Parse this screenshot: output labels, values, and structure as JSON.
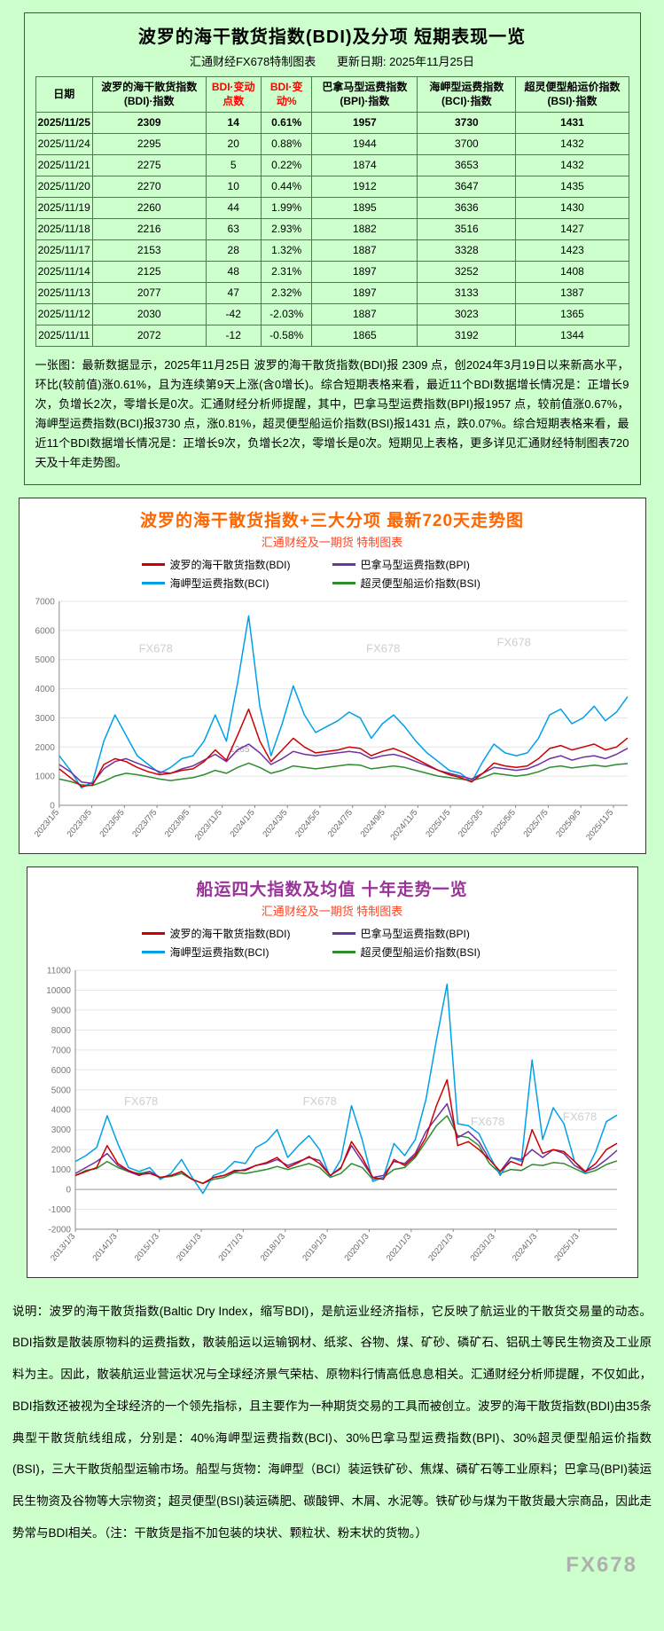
{
  "page": {
    "watermark": "FX678",
    "bg": "#ccffcc"
  },
  "table_panel": {
    "title": "波罗的海干散货指数(BDI)及分项 短期表现一览",
    "source_label": "汇通财经FX678特制图表",
    "update_label": "更新日期: 2025年11月25日",
    "columns": [
      {
        "label": "日期",
        "color": "#000000"
      },
      {
        "label": "波罗的海干散货指数(BDI)·指数",
        "color": "#000000"
      },
      {
        "label": "BDI·变动点数",
        "color": "#ff0000"
      },
      {
        "label": "BDI·变动%",
        "color": "#ff0000"
      },
      {
        "label": "巴拿马型运费指数(BPI)·指数",
        "color": "#000000"
      },
      {
        "label": "海岬型运费指数(BCI)·指数",
        "color": "#000000"
      },
      {
        "label": "超灵便型船运价指数(BSI)·指数",
        "color": "#000000"
      }
    ],
    "rows": [
      [
        "2025/11/25",
        "2309",
        "14",
        "0.61%",
        "1957",
        "3730",
        "1431"
      ],
      [
        "2025/11/24",
        "2295",
        "20",
        "0.88%",
        "1944",
        "3700",
        "1432"
      ],
      [
        "2025/11/21",
        "2275",
        "5",
        "0.22%",
        "1874",
        "3653",
        "1432"
      ],
      [
        "2025/11/20",
        "2270",
        "10",
        "0.44%",
        "1912",
        "3647",
        "1435"
      ],
      [
        "2025/11/19",
        "2260",
        "44",
        "1.99%",
        "1895",
        "3636",
        "1430"
      ],
      [
        "2025/11/18",
        "2216",
        "63",
        "2.93%",
        "1882",
        "3516",
        "1427"
      ],
      [
        "2025/11/17",
        "2153",
        "28",
        "1.32%",
        "1887",
        "3328",
        "1423"
      ],
      [
        "2025/11/14",
        "2125",
        "48",
        "2.31%",
        "1897",
        "3252",
        "1408"
      ],
      [
        "2025/11/13",
        "2077",
        "47",
        "2.32%",
        "1897",
        "3133",
        "1387"
      ],
      [
        "2025/11/12",
        "2030",
        "-42",
        "-2.03%",
        "1887",
        "3023",
        "1365"
      ],
      [
        "2025/11/11",
        "2072",
        "-12",
        "-0.58%",
        "1865",
        "3192",
        "1344"
      ]
    ],
    "analysis": "一张图：最新数据显示，2025年11月25日 波罗的海干散货指数(BDI)报 2309 点，创2024年3月19日以来新高水平，环比(较前值)涨0.61%，且为连续第9天上涨(含0增长)。综合短期表格来看，最近11个BDI数据增长情况是：正增长9次，负增长2次，零增长是0次。汇通财经分析师提醒，其中，巴拿马型运费指数(BPI)报1957 点，较前值涨0.67%，海岬型运费指数(BCI)报3730 点，涨0.81%，超灵便型船运价指数(BSI)报1431 点，跌0.07%。综合短期表格来看，最近11个BDI数据增长情况是：正增长9次，负增长2次，零增长是0次。短期见上表格，更多详见汇通财经特制图表720天及十年走势图。"
  },
  "chart_data": [
    {
      "type": "line",
      "title": "波罗的海干散货指数+三大分项  最新720天走势图",
      "subtitle": "汇通财经及一期货 特制图表",
      "ylim": [
        0,
        7000
      ],
      "ytick_step": 1000,
      "grid": true,
      "legend_position": "top",
      "x_labels": [
        "2023/1/5",
        "2023/3/5",
        "2023/5/5",
        "2023/7/5",
        "2023/9/5",
        "2023/11/5",
        "2024/1/5",
        "2024/3/5",
        "2024/5/5",
        "2024/7/5",
        "2024/9/5",
        "2024/11/5",
        "2025/1/5",
        "2025/3/5",
        "2025/5/5",
        "2025/7/5",
        "2025/9/5",
        "2025/11/5"
      ],
      "x_label_span": 0.975,
      "series": [
        {
          "name": "波罗的海干散货指数(BDI)",
          "color": "#cc0000",
          "values": [
            1250,
            950,
            650,
            700,
            1400,
            1600,
            1500,
            1300,
            1150,
            1050,
            1100,
            1200,
            1250,
            1500,
            1900,
            1550,
            2400,
            3300,
            2200,
            1500,
            1900,
            2300,
            2000,
            1800,
            1850,
            1900,
            2000,
            1950,
            1700,
            1850,
            1950,
            1800,
            1600,
            1400,
            1200,
            1050,
            950,
            800,
            1100,
            1450,
            1350,
            1300,
            1350,
            1600,
            1950,
            2050,
            1900,
            2000,
            2100,
            1900,
            2000,
            2309
          ]
        },
        {
          "name": "巴拿马型运费指数(BPI)",
          "color": "#7030a0",
          "values": [
            1400,
            1150,
            800,
            750,
            1250,
            1500,
            1600,
            1450,
            1300,
            1150,
            1100,
            1250,
            1350,
            1550,
            1750,
            1500,
            1900,
            2100,
            1800,
            1400,
            1600,
            1850,
            1750,
            1700,
            1750,
            1800,
            1850,
            1800,
            1600,
            1700,
            1750,
            1650,
            1500,
            1350,
            1200,
            1100,
            1000,
            900,
            1100,
            1300,
            1250,
            1200,
            1250,
            1400,
            1600,
            1700,
            1550,
            1650,
            1700,
            1600,
            1750,
            1957
          ]
        },
        {
          "name": "海岬型运费指数(BCI)",
          "color": "#00a0e9",
          "values": [
            1700,
            1200,
            600,
            800,
            2200,
            3100,
            2400,
            1700,
            1400,
            1100,
            1300,
            1600,
            1700,
            2200,
            3100,
            2200,
            4200,
            6500,
            3400,
            1700,
            2800,
            4100,
            3100,
            2500,
            2700,
            2900,
            3200,
            3000,
            2300,
            2800,
            3100,
            2700,
            2200,
            1800,
            1500,
            1200,
            1100,
            800,
            1500,
            2100,
            1800,
            1700,
            1800,
            2300,
            3100,
            3300,
            2800,
            3000,
            3400,
            2900,
            3200,
            3730
          ]
        },
        {
          "name": "超灵便型船运价指数(BSI)",
          "color": "#2e8b2e",
          "values": [
            900,
            820,
            700,
            680,
            820,
            1000,
            1100,
            1050,
            980,
            900,
            850,
            900,
            950,
            1050,
            1200,
            1100,
            1300,
            1450,
            1300,
            1100,
            1200,
            1350,
            1300,
            1250,
            1300,
            1350,
            1400,
            1380,
            1250,
            1300,
            1350,
            1300,
            1200,
            1100,
            1000,
            950,
            900,
            850,
            950,
            1100,
            1050,
            1000,
            1050,
            1150,
            1300,
            1350,
            1280,
            1330,
            1380,
            1330,
            1400,
            1431
          ]
        }
      ],
      "watermarks": [
        [
          0.14,
          0.25
        ],
        [
          0.54,
          0.25
        ],
        [
          0.77,
          0.22
        ]
      ],
      "annotations": [
        {
          "text": "1265",
          "fx": 0.3,
          "fy": 0.74
        }
      ]
    },
    {
      "type": "line",
      "title": "船运四大指数及均值 十年走势一览",
      "subtitle": "汇通财经及一期货 特制图表",
      "ylim": [
        -2000,
        11000
      ],
      "ytick_step": 1000,
      "grid": true,
      "legend_position": "top",
      "x_labels": [
        "2013/1/3",
        "2014/1/3",
        "2015/1/3",
        "2016/1/3",
        "2017/1/3",
        "2018/1/3",
        "2019/1/3",
        "2020/1/3",
        "2021/1/3",
        "2022/1/3",
        "2023/1/3",
        "2024/1/3",
        "2025/1/3"
      ],
      "x_label_span": 0.93,
      "series": [
        {
          "name": "波罗的海干散货指数(BDI)",
          "color": "#cc0000",
          "values": [
            700,
            900,
            1100,
            2200,
            1300,
            950,
            750,
            800,
            600,
            700,
            900,
            500,
            300,
            600,
            700,
            950,
            950,
            1200,
            1350,
            1600,
            1100,
            1350,
            1650,
            1300,
            700,
            1050,
            2400,
            1600,
            600,
            500,
            1500,
            1200,
            1700,
            2600,
            4200,
            5500,
            2200,
            2400,
            2000,
            1500,
            900,
            1400,
            1200,
            3000,
            1800,
            2000,
            1900,
            1400,
            900,
            1300,
            2000,
            2309
          ]
        },
        {
          "name": "巴拿马型运费指数(BPI)",
          "color": "#7030a0",
          "values": [
            800,
            1100,
            1400,
            1800,
            1200,
            900,
            700,
            900,
            600,
            700,
            900,
            500,
            300,
            600,
            700,
            900,
            1000,
            1200,
            1300,
            1500,
            1200,
            1400,
            1600,
            1450,
            700,
            1100,
            2200,
            1400,
            600,
            700,
            1400,
            1300,
            1800,
            2900,
            3600,
            4300,
            2600,
            2900,
            2400,
            1500,
            900,
            1600,
            1500,
            2000,
            1600,
            2000,
            1800,
            1200,
            900,
            1100,
            1500,
            1957
          ]
        },
        {
          "name": "海岬型运费指数(BCI)",
          "color": "#00a0e9",
          "values": [
            1400,
            1700,
            2100,
            3700,
            2300,
            1100,
            900,
            1100,
            500,
            800,
            1500,
            600,
            -200,
            700,
            900,
            1400,
            1300,
            2100,
            2400,
            3000,
            1600,
            2200,
            2700,
            2000,
            600,
            1500,
            4200,
            2500,
            400,
            600,
            2300,
            1700,
            2500,
            4500,
            7500,
            10300,
            3300,
            3200,
            2800,
            1700,
            700,
            1600,
            1400,
            6500,
            2500,
            4100,
            3300,
            1400,
            800,
            1900,
            3400,
            3730
          ]
        },
        {
          "name": "超灵便型船运价指数(BSI)",
          "color": "#2e8b2e",
          "values": [
            700,
            950,
            1050,
            1400,
            1100,
            900,
            800,
            900,
            600,
            650,
            800,
            500,
            300,
            500,
            600,
            850,
            800,
            900,
            1000,
            1150,
            1000,
            1150,
            1300,
            1100,
            600,
            800,
            1300,
            1100,
            500,
            600,
            1000,
            1100,
            1600,
            2400,
            3200,
            3700,
            2700,
            2600,
            2200,
            1300,
            800,
            1000,
            950,
            1250,
            1200,
            1350,
            1300,
            1050,
            800,
            950,
            1250,
            1431
          ]
        }
      ],
      "watermarks": [
        [
          0.09,
          0.52
        ],
        [
          0.42,
          0.52
        ],
        [
          0.73,
          0.6
        ],
        [
          0.9,
          0.58
        ]
      ],
      "annotations": []
    }
  ],
  "footer": {
    "text": "说明：波罗的海干散货指数(Baltic Dry Index，缩写BDI)，是航运业经济指标，它反映了航运业的干散货交易量的动态。BDI指数是散装原物料的运费指数，散装船运以运输钢材、纸浆、谷物、煤、矿砂、磷矿石、铝矾土等民生物资及工业原料为主。因此，散装航运业营运状况与全球经济景气荣枯、原物料行情高低息息相关。汇通财经分析师提醒，不仅如此，BDI指数还被视为全球经济的一个领先指标，且主要作为一种期货交易的工具而被创立。波罗的海干散货指数(BDI)由35条典型干散货航线组成，分别是：40%海岬型运费指数(BCI)、30%巴拿马型运费指数(BPI)、30%超灵便型船运价指数(BSI)，三大干散货船型运输市场。船型与货物：海岬型（BCI）装运铁矿砂、焦煤、磷矿石等工业原料；巴拿马(BPI)装运民生物资及谷物等大宗物资；超灵便型(BSI)装运磷肥、碳酸钾、木屑、水泥等。铁矿砂与煤为干散货最大宗商品，因此走势常与BDI相关。（注：干散货是指不加包装的块状、颗粒状、粉末状的货物。）"
  }
}
